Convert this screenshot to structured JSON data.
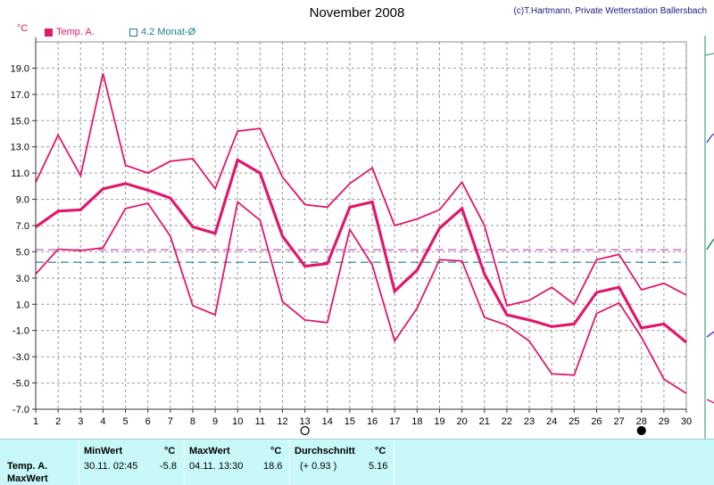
{
  "chart_data": {
    "type": "line",
    "title": "November 2008",
    "copyright": "(c)T.Hartmann, Private Wetterstation Ballersbach",
    "ylabel": "°C",
    "x": [
      1,
      2,
      3,
      4,
      5,
      6,
      7,
      8,
      9,
      10,
      11,
      12,
      13,
      14,
      15,
      16,
      17,
      18,
      19,
      20,
      21,
      22,
      23,
      24,
      25,
      26,
      27,
      28,
      29,
      30
    ],
    "ylim": [
      -7.0,
      21.0
    ],
    "yticks": [
      "19.0",
      "17.0",
      "15.0",
      "13.0",
      "11.0",
      "9.0",
      "7.0",
      "5.0",
      "3.0",
      "1.0",
      "-1.0",
      "-3.0",
      "-5.0",
      "-7.0"
    ],
    "grid": true,
    "legend_position": "top-left",
    "series": [
      {
        "name": "Temp. A.",
        "role": "max",
        "color": "#e0186c",
        "values": [
          10.3,
          13.9,
          10.8,
          18.6,
          11.6,
          11.0,
          11.9,
          12.1,
          9.8,
          14.2,
          14.4,
          10.7,
          8.6,
          8.4,
          10.2,
          11.4,
          7.0,
          7.5,
          8.2,
          10.3,
          7.0,
          0.9,
          1.3,
          2.3,
          1.0,
          4.4,
          4.8,
          2.1,
          2.6,
          1.7
        ]
      },
      {
        "role": "mean",
        "color": "#e0186c",
        "values": [
          6.9,
          8.1,
          8.2,
          9.8,
          10.2,
          9.7,
          9.1,
          6.9,
          6.4,
          12.0,
          11.0,
          6.2,
          3.9,
          4.1,
          8.4,
          8.8,
          2.0,
          3.6,
          6.8,
          8.3,
          3.3,
          0.2,
          -0.2,
          -0.7,
          -0.5,
          1.9,
          2.3,
          -0.8,
          -0.5,
          -1.9
        ]
      },
      {
        "role": "min",
        "color": "#e0186c",
        "values": [
          3.3,
          5.2,
          5.1,
          5.3,
          8.3,
          8.7,
          6.2,
          0.9,
          0.2,
          8.8,
          7.4,
          1.2,
          -0.2,
          -0.4,
          6.7,
          4.0,
          -1.8,
          0.7,
          4.4,
          4.3,
          0.0,
          -0.6,
          -1.8,
          -4.3,
          -4.4,
          0.3,
          1.1,
          -1.5,
          -4.7,
          -5.8
        ]
      }
    ],
    "reference_lines": [
      {
        "name": "4.2 Monat-Ø",
        "value": 4.2,
        "color": "#1a7f8f",
        "style": "dashed"
      },
      {
        "value": 5.16,
        "color": "#c040c0",
        "style": "dashed"
      }
    ],
    "moon_phases": [
      {
        "day": 13,
        "phase": "full"
      },
      {
        "day": 28,
        "phase": "new"
      }
    ]
  },
  "legend": [
    {
      "label": "Temp. A.",
      "color": "#e0186c",
      "filled": true
    },
    {
      "label": "4.2 Monat-Ø",
      "color": "#1a7f8f",
      "filled": false
    }
  ],
  "stats": {
    "row1_label": "Temp. A.",
    "row2_label": "MaxWert",
    "min_header": "MinWert",
    "max_header": "MaxWert",
    "avg_header": "Durchschnitt",
    "unit": "°C",
    "min_time": "30.11.  02:45",
    "min_value": "-5.8",
    "max_time": "04.11.  13:30",
    "max_value": "18.6",
    "avg_delta": "(+ 0.93 )",
    "avg_value": "5.16"
  }
}
